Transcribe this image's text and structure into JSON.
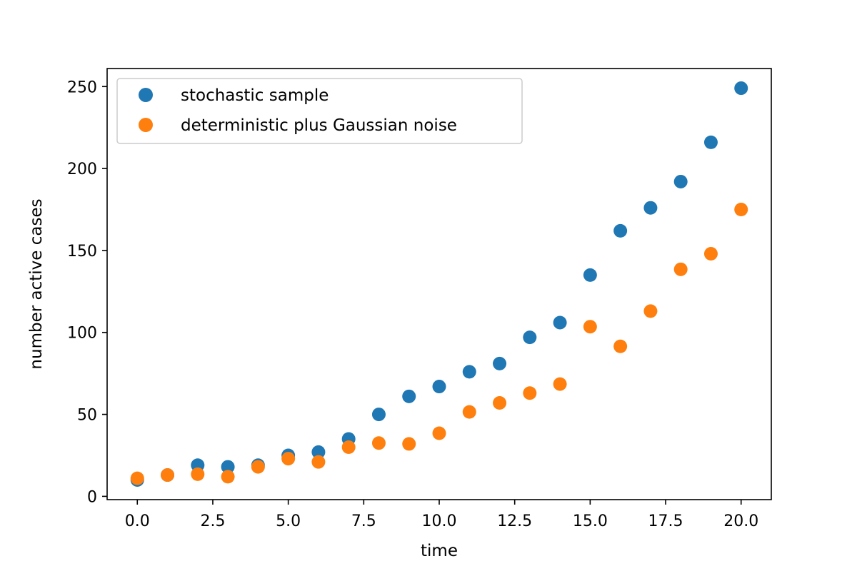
{
  "chart_data": {
    "type": "scatter",
    "title": "",
    "xlabel": "time",
    "ylabel": "number active cases",
    "xlim": [
      -1.0,
      21.0
    ],
    "ylim": [
      -2.0,
      261.0
    ],
    "xticks": [
      0.0,
      2.5,
      5.0,
      7.5,
      10.0,
      12.5,
      15.0,
      17.5,
      20.0
    ],
    "xtick_labels": [
      "0.0",
      "2.5",
      "5.0",
      "7.5",
      "10.0",
      "12.5",
      "15.0",
      "17.5",
      "20.0"
    ],
    "yticks": [
      0,
      50,
      100,
      150,
      200,
      250
    ],
    "ytick_labels": [
      "0",
      "50",
      "100",
      "150",
      "200",
      "250"
    ],
    "grid": false,
    "legend_position": "top-left",
    "x": [
      0,
      1,
      2,
      3,
      4,
      5,
      6,
      7,
      8,
      9,
      10,
      11,
      12,
      13,
      14,
      15,
      16,
      17,
      18,
      19,
      20
    ],
    "series": [
      {
        "name": "stochastic sample",
        "color": "#1f77b4",
        "values": [
          10,
          13,
          19,
          18,
          19,
          25,
          27,
          35,
          50,
          61,
          67,
          76,
          81,
          97,
          106,
          135,
          162,
          176,
          192,
          216,
          249
        ]
      },
      {
        "name": "deterministic plus Gaussian noise",
        "color": "#ff7f0e",
        "values": [
          11,
          13,
          13.5,
          12,
          18,
          23,
          21,
          30,
          32.5,
          32,
          38.5,
          51.5,
          57,
          63,
          68.5,
          103.5,
          91.5,
          113,
          138.5,
          148,
          175
        ]
      }
    ]
  }
}
